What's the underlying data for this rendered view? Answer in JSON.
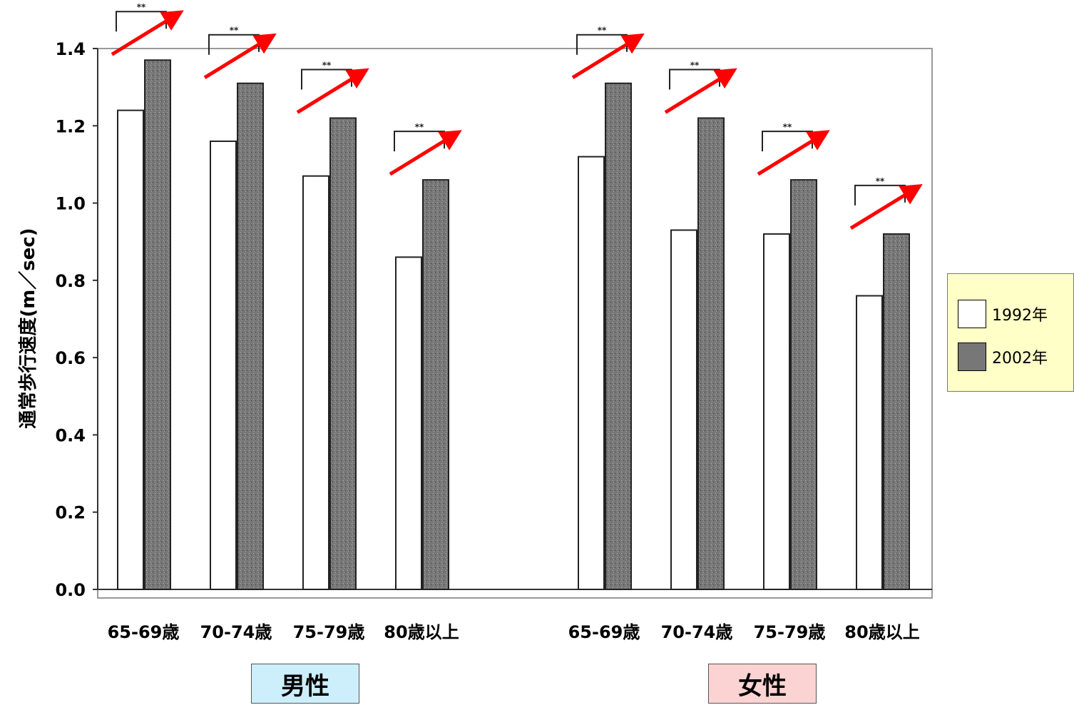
{
  "chart_data": {
    "type": "bar",
    "title": "",
    "xlabel": "",
    "ylabel": "通常歩行速度(m／sec)",
    "ylim": [
      0,
      1.4
    ],
    "yticks": [
      "0.0",
      "0.2",
      "0.4",
      "0.6",
      "0.8",
      "1.0",
      "1.2",
      "1.4"
    ],
    "categories": [
      "65-69歳",
      "70-74歳",
      "75-79歳",
      "80歳以上",
      "65-69歳",
      "70-74歳",
      "75-79歳",
      "80歳以上"
    ],
    "groups": [
      {
        "label": "男性",
        "color": "#cdeffc",
        "categories": [
          "65-69歳",
          "70-74歳",
          "75-79歳",
          "80歳以上"
        ]
      },
      {
        "label": "女性",
        "color": "#fcd3d3",
        "categories": [
          "65-69歳",
          "70-74歳",
          "75-79歳",
          "80歳以上"
        ]
      }
    ],
    "series": [
      {
        "name": "1992年",
        "color": "#ffffff",
        "values": [
          1.24,
          1.16,
          1.07,
          0.86,
          1.12,
          0.93,
          0.92,
          0.76
        ]
      },
      {
        "name": "2002年",
        "color": "#777777",
        "values": [
          1.37,
          1.31,
          1.22,
          1.06,
          1.31,
          1.22,
          1.06,
          0.92
        ]
      }
    ],
    "significance": [
      "**",
      "**",
      "**",
      "**",
      "**",
      "**",
      "**",
      "**"
    ],
    "trend_arrow_color": "#ff0000",
    "grid": false,
    "legend_position": "right"
  }
}
